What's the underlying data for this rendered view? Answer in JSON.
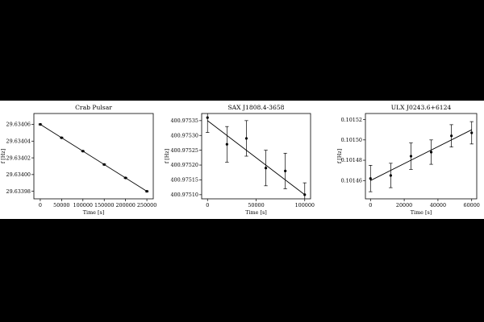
{
  "chart_data": [
    {
      "type": "scatter",
      "title": "Crab Pulsar",
      "xlabel": "Time [s]",
      "ylabel": "f [Hz]",
      "xlim": [
        -15000,
        265000
      ],
      "ylim": [
        29.633971,
        29.634073
      ],
      "xticks": [
        0,
        50000,
        100000,
        150000,
        200000,
        250000
      ],
      "xtick_labels": [
        "0",
        "50000",
        "100000",
        "150000",
        "200000",
        "250000"
      ],
      "yticks": [
        29.63398,
        29.634,
        29.63402,
        29.63404,
        29.63406
      ],
      "ytick_labels": [
        "29.63398",
        "29.63400",
        "29.63402",
        "29.63404",
        "29.63406"
      ],
      "series": [
        {
          "x": [
            0,
            50000,
            100000,
            150000,
            200000,
            250000
          ],
          "y": [
            29.63406,
            29.634044,
            29.634028,
            29.634012,
            29.633996,
            29.63398
          ],
          "yerr": [
            6e-07,
            6e-07,
            6e-07,
            6e-07,
            6e-07,
            6e-07
          ]
        }
      ],
      "fit": {
        "x": [
          0,
          250000
        ],
        "y": [
          29.63406,
          29.63398
        ]
      },
      "grid": false
    },
    {
      "type": "scatter",
      "title": "SAX J1808.4-3658",
      "xlabel": "Time [s]",
      "ylabel": "f [Hz]",
      "xlim": [
        -6000,
        106000
      ],
      "ylim": [
        400.975086,
        400.975374
      ],
      "xticks": [
        0,
        50000,
        100000
      ],
      "xtick_labels": [
        "0",
        "50000",
        "100000"
      ],
      "yticks": [
        400.9751,
        400.97515,
        400.9752,
        400.97525,
        400.9753,
        400.97535
      ],
      "ytick_labels": [
        "400.97510",
        "400.97515",
        "400.97520",
        "400.97525",
        "400.97530",
        "400.97535"
      ],
      "series": [
        {
          "x": [
            0,
            20000,
            40000,
            60000,
            80000,
            100000
          ],
          "y": [
            400.97536,
            400.97527,
            400.97529,
            400.97519,
            400.97518,
            400.9751
          ],
          "yerr": [
            5e-05,
            6e-05,
            6e-05,
            6e-05,
            6e-05,
            4e-05
          ]
        }
      ],
      "fit": {
        "x": [
          0,
          100000
        ],
        "y": [
          400.97535,
          400.9751
        ]
      },
      "grid": false
    },
    {
      "type": "scatter",
      "title": "ULX J0243.6+6124",
      "xlabel": "Time [s]",
      "ylabel": "f [Hz]",
      "xlim": [
        -3000,
        63000
      ],
      "ylim": [
        0.101442,
        0.101526
      ],
      "xticks": [
        0,
        20000,
        40000,
        60000
      ],
      "xtick_labels": [
        "0",
        "20000",
        "40000",
        "60000"
      ],
      "yticks": [
        0.10146,
        0.10148,
        0.1015,
        0.10152
      ],
      "ytick_labels": [
        "0.10146",
        "0.10148",
        "0.10150",
        "0.10152"
      ],
      "series": [
        {
          "x": [
            0,
            12000,
            24000,
            36000,
            48000,
            60000
          ],
          "y": [
            0.101462,
            0.101465,
            0.101484,
            0.101488,
            0.101504,
            0.101507
          ],
          "yerr": [
            1.3e-05,
            1.2e-05,
            1.3e-05,
            1.2e-05,
            1.1e-05,
            1.1e-05
          ]
        }
      ],
      "fit": {
        "x": [
          0,
          60000
        ],
        "y": [
          0.10146,
          0.10151
        ]
      },
      "grid": false
    }
  ]
}
